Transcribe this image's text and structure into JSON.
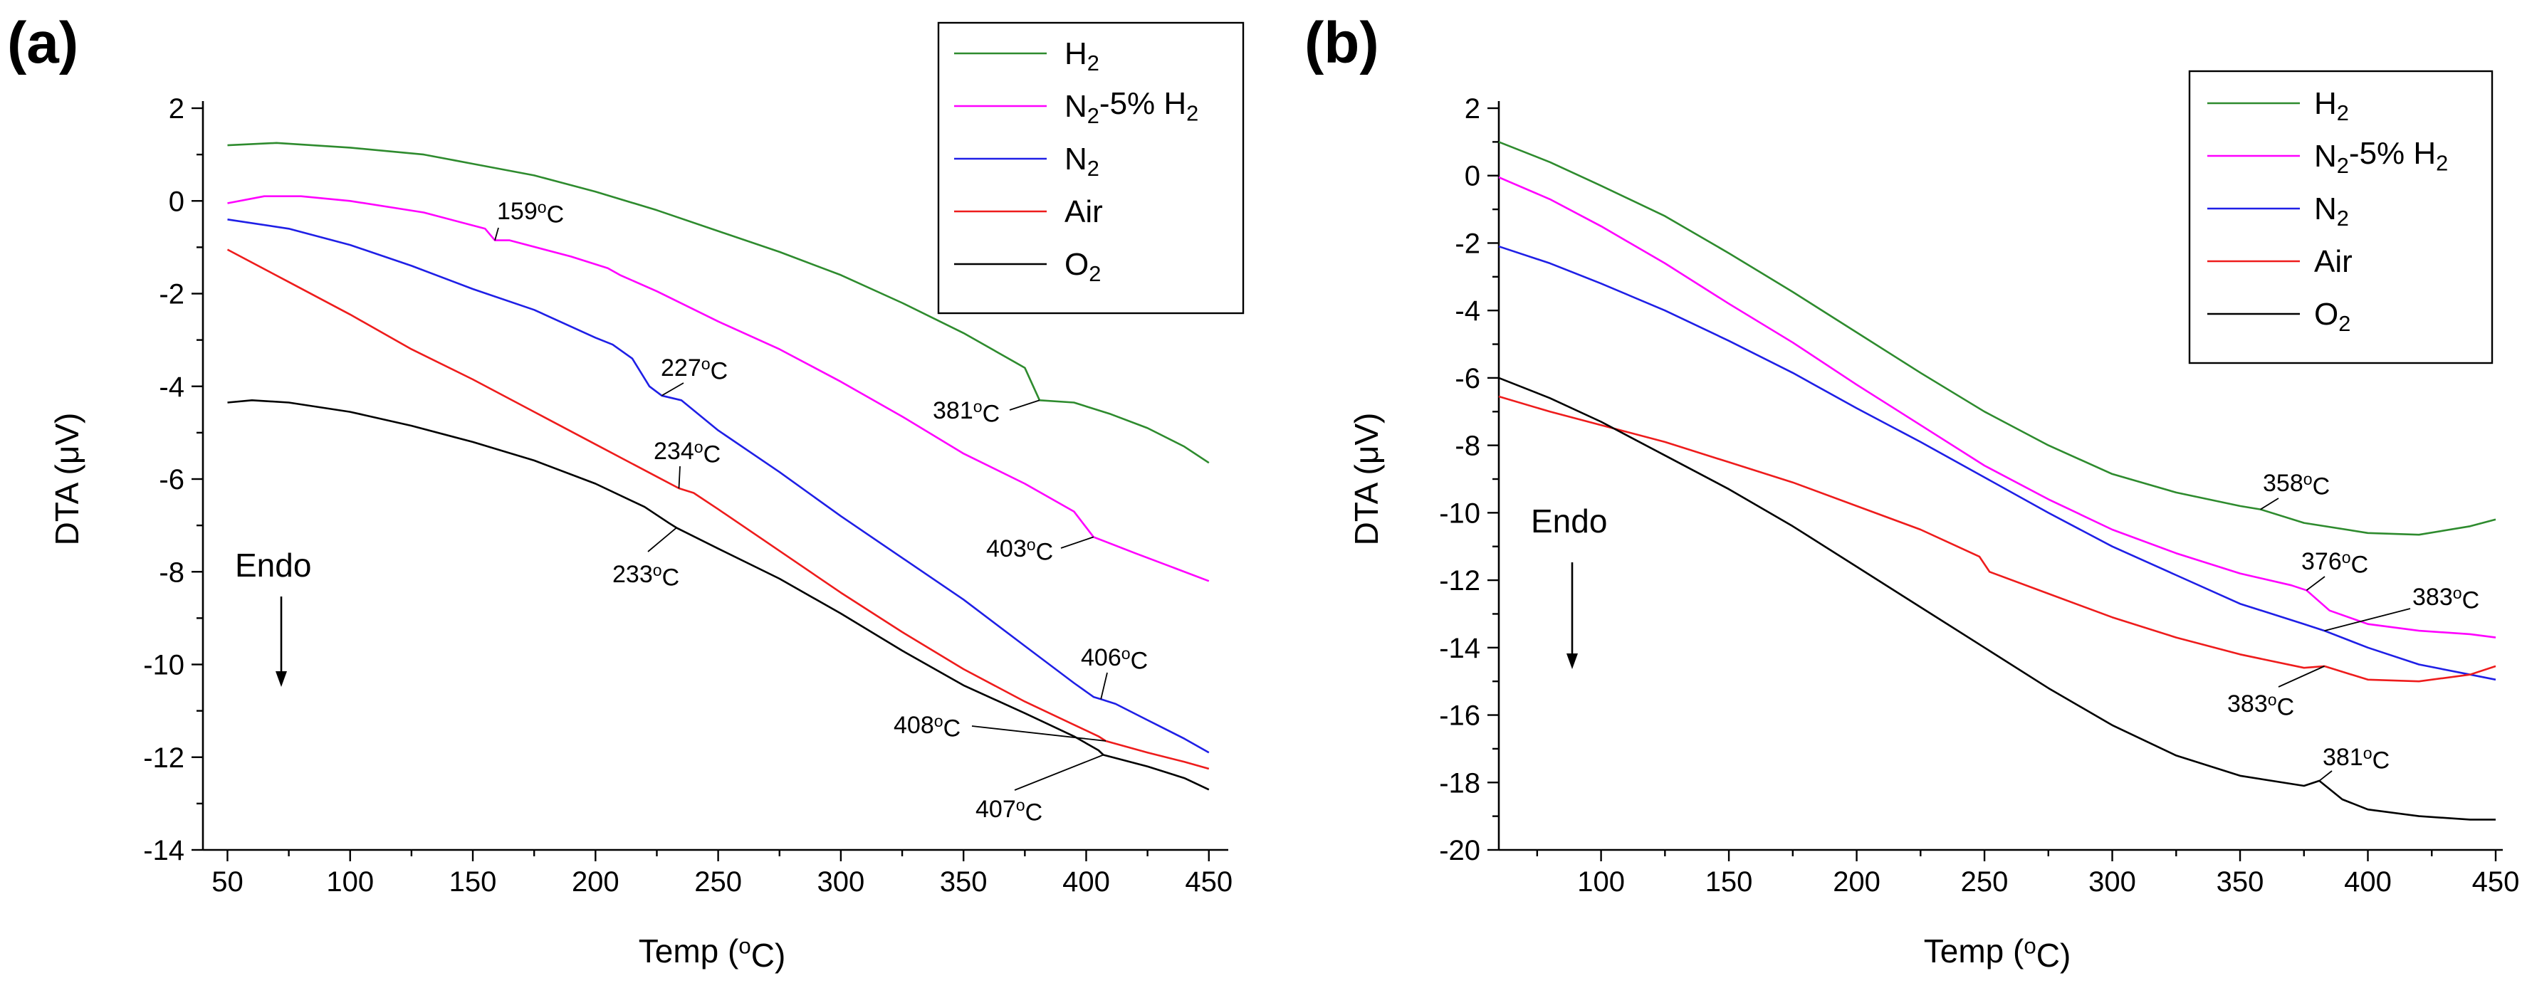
{
  "chart_data": [
    {
      "panel": "a",
      "panel_label": "(a)",
      "type": "line",
      "title": "",
      "xlabel": "Temp (°C)",
      "ylabel": "DTA (μV)",
      "xlim": [
        40,
        455
      ],
      "ylim": [
        -14,
        2
      ],
      "xticks": [
        50,
        100,
        150,
        200,
        250,
        300,
        350,
        400,
        450
      ],
      "yticks": [
        2,
        0,
        -2,
        -4,
        -6,
        -8,
        -10,
        -12,
        -14
      ],
      "legend_position": "top-right",
      "series": [
        {
          "name": "H2",
          "label_main": "H",
          "label_sub": "2",
          "label_rest": "",
          "label_sub2": "",
          "color": "#2e8b2e",
          "x": [
            50,
            70,
            100,
            130,
            150,
            175,
            200,
            225,
            250,
            275,
            300,
            325,
            350,
            375,
            381,
            395,
            410,
            425,
            440,
            450
          ],
          "y": [
            1.2,
            1.25,
            1.15,
            1.0,
            0.8,
            0.55,
            0.2,
            -0.2,
            -0.65,
            -1.1,
            -1.6,
            -2.2,
            -2.85,
            -3.6,
            -4.3,
            -4.35,
            -4.6,
            -4.9,
            -5.3,
            -5.65
          ]
        },
        {
          "name": "N2-5% H2",
          "label_main": "N",
          "label_sub": "2",
          "label_rest": "-5% H",
          "label_sub2": "2",
          "color": "#ff00ff",
          "x": [
            50,
            65,
            80,
            100,
            130,
            155,
            159,
            165,
            190,
            205,
            210,
            225,
            250,
            275,
            300,
            325,
            350,
            375,
            395,
            403,
            420,
            435,
            450
          ],
          "y": [
            -0.05,
            0.1,
            0.1,
            0.0,
            -0.25,
            -0.6,
            -0.85,
            -0.85,
            -1.2,
            -1.45,
            -1.6,
            -1.95,
            -2.6,
            -3.2,
            -3.9,
            -4.65,
            -5.45,
            -6.1,
            -6.7,
            -7.25,
            -7.6,
            -7.9,
            -8.2
          ]
        },
        {
          "name": "N2",
          "label_main": "N",
          "label_sub": "2",
          "label_rest": "",
          "label_sub2": "",
          "color": "#1f1fe6",
          "x": [
            50,
            75,
            100,
            125,
            150,
            175,
            200,
            207,
            215,
            222,
            227,
            235,
            250,
            275,
            300,
            325,
            350,
            375,
            395,
            403,
            406,
            412,
            425,
            440,
            450
          ],
          "y": [
            -0.4,
            -0.6,
            -0.95,
            -1.4,
            -1.9,
            -2.35,
            -2.95,
            -3.1,
            -3.4,
            -4.0,
            -4.2,
            -4.3,
            -4.95,
            -5.85,
            -6.8,
            -7.7,
            -8.6,
            -9.6,
            -10.4,
            -10.7,
            -10.75,
            -10.85,
            -11.2,
            -11.6,
            -11.9
          ]
        },
        {
          "name": "Air",
          "label_main": "Air",
          "label_sub": "",
          "label_rest": "",
          "label_sub2": "",
          "color": "#ee1c1c",
          "x": [
            50,
            75,
            100,
            125,
            150,
            175,
            200,
            225,
            234,
            240,
            250,
            275,
            300,
            325,
            350,
            375,
            395,
            405,
            408,
            425,
            440,
            450
          ],
          "y": [
            -1.05,
            -1.75,
            -2.45,
            -3.2,
            -3.85,
            -4.55,
            -5.25,
            -5.95,
            -6.2,
            -6.3,
            -6.65,
            -7.55,
            -8.45,
            -9.3,
            -10.1,
            -10.8,
            -11.3,
            -11.55,
            -11.65,
            -11.9,
            -12.1,
            -12.25
          ]
        },
        {
          "name": "O2",
          "label_main": "O",
          "label_sub": "2",
          "label_rest": "",
          "label_sub2": "",
          "color": "#000000",
          "x": [
            50,
            60,
            75,
            100,
            125,
            150,
            175,
            200,
            220,
            230,
            233,
            250,
            275,
            300,
            325,
            350,
            375,
            395,
            405,
            407,
            425,
            440,
            450
          ],
          "y": [
            -4.35,
            -4.3,
            -4.35,
            -4.55,
            -4.85,
            -5.2,
            -5.6,
            -6.1,
            -6.6,
            -6.95,
            -7.05,
            -7.5,
            -8.15,
            -8.9,
            -9.7,
            -10.45,
            -11.05,
            -11.55,
            -11.85,
            -11.95,
            -12.2,
            -12.45,
            -12.7
          ]
        }
      ],
      "annotations": [
        {
          "text": "159°C",
          "x": 159,
          "y": -0.85
        },
        {
          "text": "227°C",
          "x": 227,
          "y": -4.2
        },
        {
          "text": "234°C",
          "x": 234,
          "y": -6.2
        },
        {
          "text": "233°C",
          "x": 233,
          "y": -7.05
        },
        {
          "text": "381°C",
          "x": 381,
          "y": -4.3
        },
        {
          "text": "403°C",
          "x": 403,
          "y": -7.25
        },
        {
          "text": "406°C",
          "x": 406,
          "y": -10.75
        },
        {
          "text": "408°C",
          "x": 408,
          "y": -11.65
        },
        {
          "text": "407°C",
          "x": 407,
          "y": -11.95
        }
      ],
      "endo_label": "Endo"
    },
    {
      "panel": "b",
      "panel_label": "(b)",
      "type": "line",
      "title": "",
      "xlabel": "Temp (°C)",
      "ylabel": "DTA (μV)",
      "xlim": [
        60,
        450
      ],
      "ylim": [
        -20,
        2
      ],
      "xticks": [
        100,
        150,
        200,
        250,
        300,
        350,
        400,
        450
      ],
      "yticks": [
        2,
        0,
        -2,
        -4,
        -6,
        -8,
        -10,
        -12,
        -14,
        -16,
        -18,
        -20
      ],
      "legend_position": "top-right",
      "series": [
        {
          "name": "H2",
          "label_main": "H",
          "label_sub": "2",
          "label_rest": "",
          "label_sub2": "",
          "color": "#2e8b2e",
          "x": [
            60,
            80,
            100,
            125,
            150,
            175,
            200,
            225,
            250,
            275,
            300,
            325,
            350,
            358,
            375,
            400,
            420,
            440,
            450
          ],
          "y": [
            1.0,
            0.4,
            -0.3,
            -1.2,
            -2.3,
            -3.45,
            -4.65,
            -5.85,
            -7.0,
            -8.0,
            -8.85,
            -9.4,
            -9.8,
            -9.9,
            -10.3,
            -10.6,
            -10.65,
            -10.4,
            -10.2
          ]
        },
        {
          "name": "N2-5% H2",
          "label_main": "N",
          "label_sub": "2",
          "label_rest": "-5% H",
          "label_sub2": "2",
          "color": "#ff00ff",
          "x": [
            60,
            80,
            100,
            125,
            150,
            175,
            200,
            225,
            250,
            275,
            300,
            325,
            350,
            370,
            376,
            385,
            400,
            420,
            440,
            450
          ],
          "y": [
            -0.05,
            -0.7,
            -1.5,
            -2.6,
            -3.8,
            -4.95,
            -6.2,
            -7.4,
            -8.6,
            -9.6,
            -10.5,
            -11.2,
            -11.8,
            -12.15,
            -12.3,
            -12.9,
            -13.3,
            -13.5,
            -13.6,
            -13.7
          ]
        },
        {
          "name": "N2",
          "label_main": "N",
          "label_sub": "2",
          "label_rest": "",
          "label_sub2": "",
          "color": "#1f1fe6",
          "x": [
            60,
            80,
            100,
            125,
            150,
            175,
            200,
            225,
            250,
            275,
            300,
            325,
            350,
            375,
            383,
            400,
            420,
            440,
            450
          ],
          "y": [
            -2.1,
            -2.6,
            -3.2,
            -4.0,
            -4.9,
            -5.85,
            -6.9,
            -7.9,
            -8.95,
            -10.0,
            -11.0,
            -11.85,
            -12.7,
            -13.3,
            -13.5,
            -14.0,
            -14.5,
            -14.8,
            -14.95
          ]
        },
        {
          "name": "Air",
          "label_main": "Air",
          "label_sub": "",
          "label_rest": "",
          "label_sub2": "",
          "color": "#ee1c1c",
          "x": [
            60,
            80,
            100,
            125,
            150,
            175,
            200,
            225,
            248,
            252,
            275,
            300,
            325,
            350,
            375,
            383,
            400,
            420,
            440,
            450
          ],
          "y": [
            -6.55,
            -7.0,
            -7.4,
            -7.9,
            -8.5,
            -9.1,
            -9.8,
            -10.5,
            -11.3,
            -11.75,
            -12.4,
            -13.1,
            -13.7,
            -14.2,
            -14.6,
            -14.55,
            -14.95,
            -15.0,
            -14.8,
            -14.55
          ]
        },
        {
          "name": "O2",
          "label_main": "O",
          "label_sub": "2",
          "label_rest": "",
          "label_sub2": "",
          "color": "#000000",
          "x": [
            60,
            80,
            100,
            125,
            150,
            175,
            200,
            225,
            250,
            275,
            300,
            325,
            350,
            375,
            381,
            390,
            400,
            420,
            440,
            450
          ],
          "y": [
            -6.0,
            -6.6,
            -7.3,
            -8.3,
            -9.3,
            -10.4,
            -11.6,
            -12.8,
            -14.0,
            -15.2,
            -16.3,
            -17.2,
            -17.8,
            -18.1,
            -17.95,
            -18.5,
            -18.8,
            -19.0,
            -19.1,
            -19.1
          ]
        }
      ],
      "annotations": [
        {
          "text": "358°C",
          "x": 358,
          "y": -9.9
        },
        {
          "text": "376°C",
          "x": 376,
          "y": -12.3
        },
        {
          "text": "383°C",
          "x": 383,
          "y": -13.5
        },
        {
          "text": "383°C",
          "x": 383,
          "y": -14.55
        },
        {
          "text": "381°C",
          "x": 381,
          "y": -17.95
        }
      ],
      "endo_label": "Endo"
    }
  ]
}
